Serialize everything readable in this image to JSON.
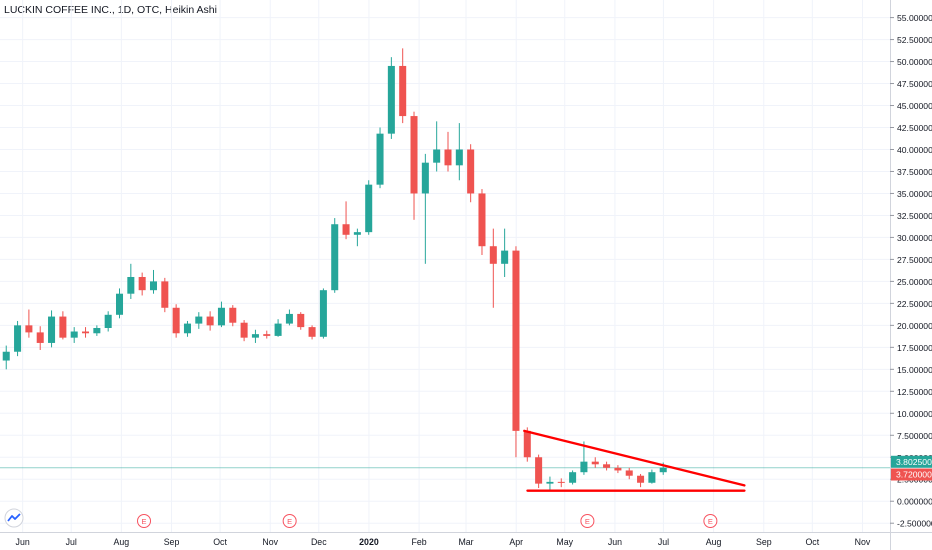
{
  "chart_data": {
    "type": "candlestick",
    "title": "LUCKIN COFFEE INC., 1D, OTC, Heikin Ashi",
    "y_ticks": [
      "55.000000",
      "52.500000",
      "50.000000",
      "47.500000",
      "45.000000",
      "42.500000",
      "40.000000",
      "37.500000",
      "35.000000",
      "32.500000",
      "30.000000",
      "27.500000",
      "25.000000",
      "22.500000",
      "20.000000",
      "17.500000",
      "15.000000",
      "12.500000",
      "10.000000",
      "7.500000",
      "5.000000",
      "2.500000",
      "0.000000",
      "-2.500000"
    ],
    "x_ticks": [
      "Jun",
      "Jul",
      "Aug",
      "Sep",
      "Oct",
      "Nov",
      "Dec",
      "2020",
      "Feb",
      "Mar",
      "Apr",
      "May",
      "Jun",
      "Jul",
      "Aug",
      "Sep",
      "Oct",
      "Nov"
    ],
    "ylim": [
      -3.5,
      57
    ],
    "price_labels": [
      {
        "text": "3.802500",
        "value": 3.8025,
        "color": "#26a69a"
      },
      {
        "text": "3.720000",
        "value": 3.72,
        "color": "#ef5350"
      }
    ],
    "earnings_markers": [
      {
        "label": "E",
        "date": "2019-08-15"
      },
      {
        "label": "E",
        "date": "2019-11-13"
      },
      {
        "label": "E",
        "date": "2020-05-15"
      },
      {
        "label": "E",
        "date": "2020-07-30"
      }
    ],
    "drawings": [
      {
        "type": "trendline",
        "from": {
          "date": "2020-04-06",
          "value": 8.0
        },
        "to": {
          "date": "2020-08-20",
          "value": 1.8
        },
        "color": "#ff0000"
      },
      {
        "type": "trendline",
        "from": {
          "date": "2020-04-08",
          "value": 1.2
        },
        "to": {
          "date": "2020-08-20",
          "value": 1.2
        },
        "color": "#ff0000"
      }
    ],
    "colors": {
      "up": "#26a69a",
      "down": "#ef5350",
      "grid": "#f0f3fa",
      "last_price_line": "#26a69a"
    },
    "series": [
      {
        "x": "2019-05-20",
        "open": 16.0,
        "high": 17.7,
        "low": 15.0,
        "close": 17.0
      },
      {
        "x": "2019-05-27",
        "open": 17.0,
        "high": 20.5,
        "low": 16.5,
        "close": 20.0
      },
      {
        "x": "2019-06-03",
        "open": 20.0,
        "high": 21.8,
        "low": 18.6,
        "close": 19.2
      },
      {
        "x": "2019-06-10",
        "open": 19.2,
        "high": 19.9,
        "low": 17.2,
        "close": 18.0
      },
      {
        "x": "2019-06-17",
        "open": 18.0,
        "high": 21.7,
        "low": 17.5,
        "close": 21.0
      },
      {
        "x": "2019-06-24",
        "open": 21.0,
        "high": 21.6,
        "low": 18.4,
        "close": 18.6
      },
      {
        "x": "2019-07-01",
        "open": 18.6,
        "high": 19.8,
        "low": 18.0,
        "close": 19.3
      },
      {
        "x": "2019-07-08",
        "open": 19.3,
        "high": 19.8,
        "low": 18.6,
        "close": 19.1
      },
      {
        "x": "2019-07-15",
        "open": 19.1,
        "high": 20.0,
        "low": 18.8,
        "close": 19.7
      },
      {
        "x": "2019-07-22",
        "open": 19.7,
        "high": 21.6,
        "low": 19.3,
        "close": 21.2
      },
      {
        "x": "2019-07-29",
        "open": 21.2,
        "high": 24.2,
        "low": 20.8,
        "close": 23.6
      },
      {
        "x": "2019-08-05",
        "open": 23.6,
        "high": 27.0,
        "low": 23.0,
        "close": 25.5
      },
      {
        "x": "2019-08-12",
        "open": 25.5,
        "high": 26.0,
        "low": 23.4,
        "close": 24.0
      },
      {
        "x": "2019-08-19",
        "open": 24.0,
        "high": 26.3,
        "low": 23.6,
        "close": 25.0
      },
      {
        "x": "2019-08-26",
        "open": 25.0,
        "high": 25.4,
        "low": 21.5,
        "close": 22.0
      },
      {
        "x": "2019-09-02",
        "open": 22.0,
        "high": 22.4,
        "low": 18.6,
        "close": 19.1
      },
      {
        "x": "2019-09-09",
        "open": 19.1,
        "high": 20.5,
        "low": 18.7,
        "close": 20.2
      },
      {
        "x": "2019-09-16",
        "open": 20.2,
        "high": 21.5,
        "low": 19.6,
        "close": 21.0
      },
      {
        "x": "2019-09-23",
        "open": 21.0,
        "high": 21.6,
        "low": 19.4,
        "close": 20.0
      },
      {
        "x": "2019-09-30",
        "open": 20.0,
        "high": 22.7,
        "low": 19.8,
        "close": 22.0
      },
      {
        "x": "2019-10-07",
        "open": 22.0,
        "high": 22.3,
        "low": 19.9,
        "close": 20.3
      },
      {
        "x": "2019-10-14",
        "open": 20.3,
        "high": 20.6,
        "low": 18.2,
        "close": 18.6
      },
      {
        "x": "2019-10-21",
        "open": 18.6,
        "high": 19.5,
        "low": 18.0,
        "close": 19.0
      },
      {
        "x": "2019-10-28",
        "open": 19.0,
        "high": 19.4,
        "low": 18.5,
        "close": 18.8
      },
      {
        "x": "2019-11-04",
        "open": 18.8,
        "high": 20.7,
        "low": 18.7,
        "close": 20.2
      },
      {
        "x": "2019-11-11",
        "open": 20.2,
        "high": 21.8,
        "low": 20.0,
        "close": 21.3
      },
      {
        "x": "2019-11-18",
        "open": 21.3,
        "high": 21.5,
        "low": 19.5,
        "close": 19.8
      },
      {
        "x": "2019-11-25",
        "open": 19.8,
        "high": 20.0,
        "low": 18.4,
        "close": 18.7
      },
      {
        "x": "2019-12-02",
        "open": 18.7,
        "high": 24.2,
        "low": 18.5,
        "close": 24.0
      },
      {
        "x": "2019-12-09",
        "open": 24.0,
        "high": 32.2,
        "low": 23.7,
        "close": 31.5
      },
      {
        "x": "2019-12-16",
        "open": 31.5,
        "high": 34.1,
        "low": 29.8,
        "close": 30.3
      },
      {
        "x": "2019-12-23",
        "open": 30.3,
        "high": 31.0,
        "low": 29.0,
        "close": 30.6
      },
      {
        "x": "2019-12-30",
        "open": 30.6,
        "high": 36.5,
        "low": 30.3,
        "close": 36.0
      },
      {
        "x": "2020-01-06",
        "open": 36.0,
        "high": 42.5,
        "low": 35.6,
        "close": 41.8
      },
      {
        "x": "2020-01-13",
        "open": 41.8,
        "high": 50.5,
        "low": 41.2,
        "close": 49.5
      },
      {
        "x": "2020-01-20",
        "open": 49.5,
        "high": 51.5,
        "low": 43.0,
        "close": 43.8
      },
      {
        "x": "2020-01-27",
        "open": 43.8,
        "high": 44.3,
        "low": 32.0,
        "close": 35.0
      },
      {
        "x": "2020-02-03",
        "open": 35.0,
        "high": 39.5,
        "low": 27.0,
        "close": 38.5
      },
      {
        "x": "2020-02-10",
        "open": 38.5,
        "high": 43.2,
        "low": 37.5,
        "close": 40.0
      },
      {
        "x": "2020-02-17",
        "open": 40.0,
        "high": 42.0,
        "low": 37.5,
        "close": 38.2
      },
      {
        "x": "2020-02-24",
        "open": 38.2,
        "high": 43.0,
        "low": 36.5,
        "close": 40.0
      },
      {
        "x": "2020-03-02",
        "open": 40.0,
        "high": 40.6,
        "low": 34.0,
        "close": 35.0
      },
      {
        "x": "2020-03-09",
        "open": 35.0,
        "high": 35.5,
        "low": 28.0,
        "close": 29.0
      },
      {
        "x": "2020-03-16",
        "open": 29.0,
        "high": 31.0,
        "low": 22.0,
        "close": 27.0
      },
      {
        "x": "2020-03-23",
        "open": 27.0,
        "high": 31.0,
        "low": 25.5,
        "close": 28.5
      },
      {
        "x": "2020-03-30",
        "open": 28.5,
        "high": 29.0,
        "low": 5.0,
        "close": 8.0
      },
      {
        "x": "2020-04-06",
        "open": 8.0,
        "high": 8.4,
        "low": 4.5,
        "close": 5.0
      },
      {
        "x": "2020-04-13",
        "open": 5.0,
        "high": 5.3,
        "low": 1.5,
        "close": 2.0
      },
      {
        "x": "2020-04-20",
        "open": 2.0,
        "high": 2.8,
        "low": 1.3,
        "close": 2.2
      },
      {
        "x": "2020-04-27",
        "open": 2.2,
        "high": 2.6,
        "low": 1.6,
        "close": 2.1
      },
      {
        "x": "2020-05-04",
        "open": 2.1,
        "high": 3.5,
        "low": 1.9,
        "close": 3.3
      },
      {
        "x": "2020-05-11",
        "open": 3.3,
        "high": 6.8,
        "low": 3.0,
        "close": 4.5
      },
      {
        "x": "2020-05-18",
        "open": 4.5,
        "high": 5.0,
        "low": 3.8,
        "close": 4.2
      },
      {
        "x": "2020-05-25",
        "open": 4.2,
        "high": 4.5,
        "low": 3.5,
        "close": 3.8
      },
      {
        "x": "2020-06-01",
        "open": 3.8,
        "high": 4.1,
        "low": 3.2,
        "close": 3.5
      },
      {
        "x": "2020-06-08",
        "open": 3.5,
        "high": 3.8,
        "low": 2.5,
        "close": 2.9
      },
      {
        "x": "2020-06-15",
        "open": 2.9,
        "high": 3.1,
        "low": 1.6,
        "close": 2.1
      },
      {
        "x": "2020-06-22",
        "open": 2.1,
        "high": 3.6,
        "low": 2.0,
        "close": 3.3
      },
      {
        "x": "2020-06-29",
        "open": 3.3,
        "high": 4.4,
        "low": 3.0,
        "close": 3.8
      }
    ]
  }
}
